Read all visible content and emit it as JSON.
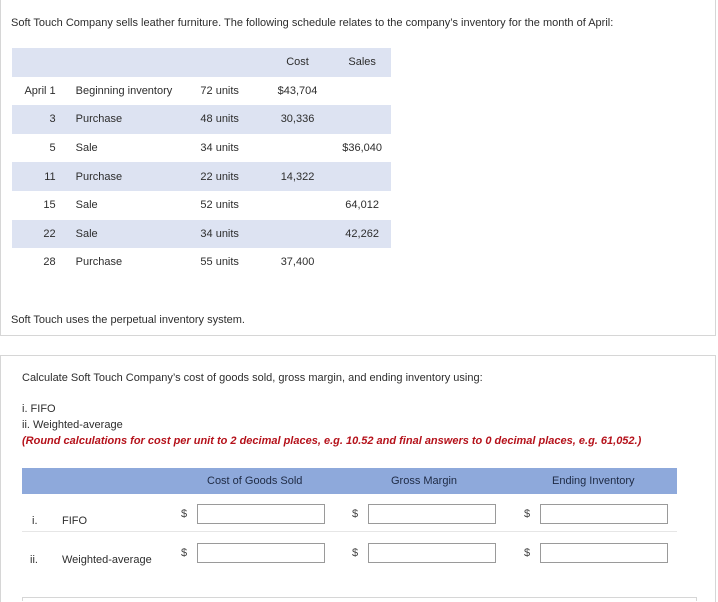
{
  "intro": "Soft Touch Company sells leather furniture. The following schedule relates to the company’s inventory for the month of April:",
  "schedule": {
    "headers": {
      "cost": "Cost",
      "sales": "Sales"
    },
    "rows": [
      {
        "date": "April 1",
        "desc": "Beginning inventory",
        "units": "72 units",
        "cost": "$43,704",
        "sales": ""
      },
      {
        "date": "3",
        "desc": "Purchase",
        "units": "48 units",
        "cost": "30,336",
        "sales": ""
      },
      {
        "date": "5",
        "desc": "Sale",
        "units": "34 units",
        "cost": "",
        "sales": "$36,040"
      },
      {
        "date": "11",
        "desc": "Purchase",
        "units": "22 units",
        "cost": "14,322",
        "sales": ""
      },
      {
        "date": "15",
        "desc": "Sale",
        "units": "52 units",
        "cost": "",
        "sales": "64,012"
      },
      {
        "date": "22",
        "desc": "Sale",
        "units": "34 units",
        "cost": "",
        "sales": "42,262"
      },
      {
        "date": "28",
        "desc": "Purchase",
        "units": "55 units",
        "cost": "37,400",
        "sales": ""
      }
    ]
  },
  "system_note": "Soft Touch uses the perpetual inventory system.",
  "question": {
    "text": "Calculate Soft Touch Company’s cost of goods sold, gross margin, and ending inventory using:",
    "item_i": "i. FIFO",
    "item_ii": "ii. Weighted-average",
    "rounding": "(Round calculations for cost per unit to 2 decimal places, e.g. 10.52 and final answers to 0 decimal places, e.g. 61,052.)"
  },
  "answer_table": {
    "headers": {
      "cogs": "Cost of Goods Sold",
      "gross_margin": "Gross Margin",
      "ending_inventory": "Ending Inventory"
    },
    "currency_symbol": "$",
    "rows": [
      {
        "num": "i.",
        "label": "FIFO",
        "cogs": "",
        "gross_margin": "",
        "ending_inventory": ""
      },
      {
        "num": "ii.",
        "label": "Weighted-average",
        "cogs": "",
        "gross_margin": "",
        "ending_inventory": ""
      }
    ]
  }
}
